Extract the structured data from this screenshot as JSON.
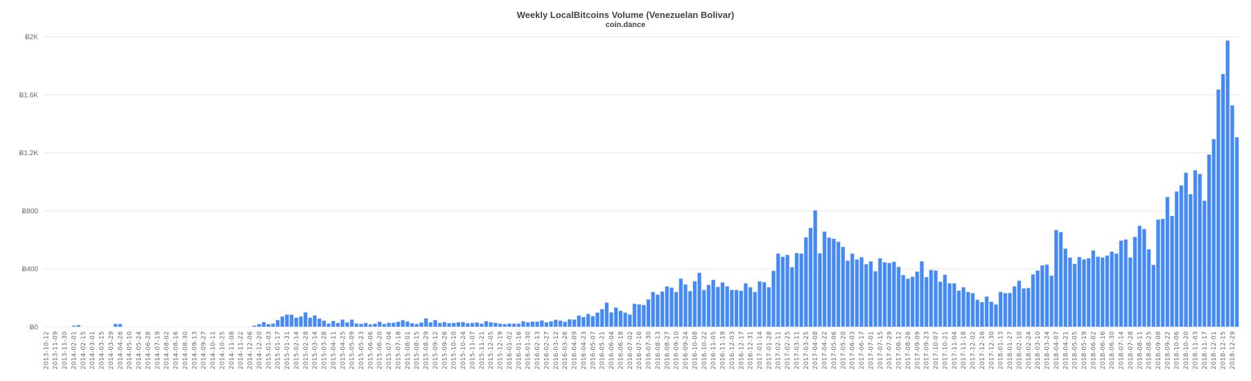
{
  "chart_data": {
    "type": "bar",
    "title": "Weekly LocalBitcoins Volume (Venezuelan Bolivar)",
    "subtitle": "coin.dance",
    "xlabel": "",
    "ylabel": "",
    "ylim": [
      0,
      2000
    ],
    "yticks": [
      0,
      400,
      800,
      1200,
      1600,
      2000
    ],
    "ytick_labels": [
      "Ƀ0",
      "Ƀ400",
      "Ƀ800",
      "Ƀ1.2K",
      "Ƀ1.6K",
      "Ƀ2K"
    ],
    "grid": true,
    "legend": "none",
    "bar_color": "#4589f5",
    "grid_color": "#e6e6e6",
    "categories": [
      "2013-10-12",
      "2013-10-26",
      "2013-11-09",
      "2013-11-23",
      "2013-11-30",
      "2014-01-25",
      "2014-02-01",
      "2014-02-08",
      "2014-02-15",
      "2014-02-22",
      "2014-03-01",
      "2014-03-08",
      "2014-03-15",
      "2014-03-22",
      "2014-03-29",
      "2014-04-19",
      "2014-04-26",
      "2014-05-03",
      "2014-05-10",
      "2014-05-17",
      "2014-05-24",
      "2014-06-14",
      "2014-06-28",
      "2014-07-12",
      "2014-07-19",
      "2014-07-26",
      "2014-08-02",
      "2014-08-09",
      "2014-08-16",
      "2014-08-23",
      "2014-08-30",
      "2014-09-06",
      "2014-09-13",
      "2014-09-20",
      "2014-09-27",
      "2014-10-04",
      "2014-10-11",
      "2014-10-18",
      "2014-10-25",
      "2014-11-01",
      "2014-11-08",
      "2014-11-15",
      "2014-11-22",
      "2014-11-29",
      "2014-12-06",
      "2014-12-13",
      "2014-12-20",
      "2014-12-27",
      "2015-01-03",
      "2015-01-10",
      "2015-01-17",
      "2015-01-24",
      "2015-01-31",
      "2015-02-07",
      "2015-02-14",
      "2015-02-21",
      "2015-02-28",
      "2015-03-07",
      "2015-03-14",
      "2015-03-21",
      "2015-03-28",
      "2015-04-04",
      "2015-04-11",
      "2015-04-18",
      "2015-04-25",
      "2015-05-02",
      "2015-05-09",
      "2015-05-16",
      "2015-05-23",
      "2015-05-30",
      "2015-06-06",
      "2015-06-13",
      "2015-06-20",
      "2015-06-27",
      "2015-07-04",
      "2015-07-11",
      "2015-07-18",
      "2015-07-25",
      "2015-08-01",
      "2015-08-08",
      "2015-08-15",
      "2015-08-22",
      "2015-08-29",
      "2015-09-05",
      "2015-09-12",
      "2015-09-19",
      "2015-09-26",
      "2015-10-03",
      "2015-10-10",
      "2015-10-17",
      "2015-10-24",
      "2015-10-31",
      "2015-11-07",
      "2015-11-14",
      "2015-11-21",
      "2015-11-28",
      "2015-12-05",
      "2015-12-12",
      "2015-12-19",
      "2015-12-26",
      "2016-01-02",
      "2016-01-09",
      "2016-01-16",
      "2016-01-23",
      "2016-01-30",
      "2016-02-06",
      "2016-02-13",
      "2016-02-20",
      "2016-02-27",
      "2016-03-05",
      "2016-03-12",
      "2016-03-19",
      "2016-03-26",
      "2016-04-02",
      "2016-04-09",
      "2016-04-16",
      "2016-04-23",
      "2016-04-30",
      "2016-05-07",
      "2016-05-14",
      "2016-05-21",
      "2016-05-28",
      "2016-06-04",
      "2016-06-11",
      "2016-06-18",
      "2016-06-25",
      "2016-07-02",
      "2016-07-09",
      "2016-07-16",
      "2016-07-23",
      "2016-07-30",
      "2016-08-06",
      "2016-08-13",
      "2016-08-20",
      "2016-08-27",
      "2016-09-03",
      "2016-09-10",
      "2016-09-17",
      "2016-09-24",
      "2016-10-01",
      "2016-10-08",
      "2016-10-15",
      "2016-10-22",
      "2016-10-29",
      "2016-11-05",
      "2016-11-12",
      "2016-11-19",
      "2016-11-26",
      "2016-12-03",
      "2016-12-10",
      "2016-12-17",
      "2016-12-24",
      "2016-12-31",
      "2017-01-07",
      "2017-01-14",
      "2017-01-21",
      "2017-01-28",
      "2017-02-04",
      "2017-02-11",
      "2017-02-18",
      "2017-02-25",
      "2017-03-04",
      "2017-03-11",
      "2017-03-18",
      "2017-03-25",
      "2017-04-01",
      "2017-04-08",
      "2017-04-15",
      "2017-04-22",
      "2017-04-29",
      "2017-05-06",
      "2017-05-13",
      "2017-05-20",
      "2017-05-27",
      "2017-06-03",
      "2017-06-10",
      "2017-06-17",
      "2017-06-24",
      "2017-07-01",
      "2017-07-08",
      "2017-07-15",
      "2017-07-22",
      "2017-07-29",
      "2017-08-05",
      "2017-08-12",
      "2017-08-19",
      "2017-08-26",
      "2017-09-02",
      "2017-09-09",
      "2017-09-16",
      "2017-09-23",
      "2017-09-30",
      "2017-10-07",
      "2017-10-14",
      "2017-10-21",
      "2017-10-28",
      "2017-11-04",
      "2017-11-11",
      "2017-11-18",
      "2017-11-25",
      "2017-12-02",
      "2017-12-09",
      "2017-12-16",
      "2017-12-23",
      "2017-12-30",
      "2018-01-06",
      "2018-01-13",
      "2018-01-20",
      "2018-01-27",
      "2018-02-03",
      "2018-02-10",
      "2018-02-17",
      "2018-02-24",
      "2018-03-03",
      "2018-03-10",
      "2018-03-17",
      "2018-03-24",
      "2018-03-31",
      "2018-04-07",
      "2018-04-14",
      "2018-04-21",
      "2018-04-28",
      "2018-05-05",
      "2018-05-12",
      "2018-05-19",
      "2018-05-26",
      "2018-06-02",
      "2018-06-09",
      "2018-06-16",
      "2018-06-23",
      "2018-06-30",
      "2018-07-07",
      "2018-07-14",
      "2018-07-21",
      "2018-07-28",
      "2018-08-04",
      "2018-08-11",
      "2018-08-18",
      "2018-08-25",
      "2018-09-01",
      "2018-09-08",
      "2018-09-15",
      "2018-09-22",
      "2018-09-29",
      "2018-10-06",
      "2018-10-13",
      "2018-10-20",
      "2018-10-27",
      "2018-11-03",
      "2018-11-10",
      "2018-11-17",
      "2018-11-24",
      "2018-12-01",
      "2018-12-08",
      "2018-12-15",
      "2018-12-22",
      "2018-12-29",
      "2019-01-05"
    ],
    "values": [
      0.5,
      2,
      0.5,
      2,
      0.5,
      3,
      10,
      14,
      0.5,
      3,
      4,
      2,
      0,
      0,
      3,
      22,
      22,
      3,
      3,
      0.5,
      1,
      0.5,
      2,
      0.5,
      3,
      2,
      2,
      2,
      3,
      2,
      2,
      3,
      3,
      2,
      2,
      2,
      2,
      3,
      3,
      3,
      3,
      3,
      3,
      3,
      3,
      11,
      21,
      35,
      21,
      24,
      49,
      73,
      86,
      86,
      65,
      73,
      102,
      65,
      81,
      59,
      45,
      25,
      43,
      29,
      52,
      33,
      52,
      25,
      22,
      29,
      19,
      24,
      37,
      22,
      30,
      30,
      37,
      48,
      38,
      27,
      22,
      32,
      60,
      33,
      49,
      29,
      35,
      27,
      29,
      33,
      35,
      27,
      29,
      32,
      24,
      41,
      33,
      30,
      24,
      21,
      25,
      24,
      24,
      41,
      33,
      38,
      38,
      46,
      33,
      40,
      51,
      45,
      37,
      54,
      52,
      80,
      70,
      91,
      76,
      100,
      124,
      169,
      102,
      135,
      113,
      100,
      87,
      161,
      157,
      153,
      191,
      242,
      224,
      245,
      281,
      272,
      242,
      334,
      294,
      248,
      316,
      375,
      256,
      291,
      326,
      277,
      308,
      281,
      256,
      256,
      251,
      302,
      275,
      242,
      315,
      310,
      275,
      388,
      507,
      485,
      498,
      413,
      510,
      507,
      619,
      684,
      805,
      509,
      658,
      617,
      609,
      588,
      553,
      458,
      507,
      466,
      482,
      434,
      453,
      385,
      474,
      447,
      442,
      450,
      415,
      359,
      334,
      347,
      383,
      453,
      345,
      394,
      390,
      313,
      361,
      302,
      302,
      251,
      275,
      242,
      234,
      189,
      172,
      211,
      175,
      156,
      243,
      234,
      235,
      281,
      320,
      267,
      270,
      363,
      390,
      426,
      431,
      355,
      669,
      655,
      541,
      479,
      436,
      483,
      467,
      475,
      528,
      485,
      480,
      493,
      520,
      507,
      596,
      604,
      480,
      622,
      698,
      676,
      536,
      429,
      741,
      746,
      897,
      766,
      935,
      976,
      1064,
      916,
      1081,
      1056,
      871,
      1189,
      1296,
      1637,
      1744,
      1975,
      1528,
      1308
    ]
  }
}
